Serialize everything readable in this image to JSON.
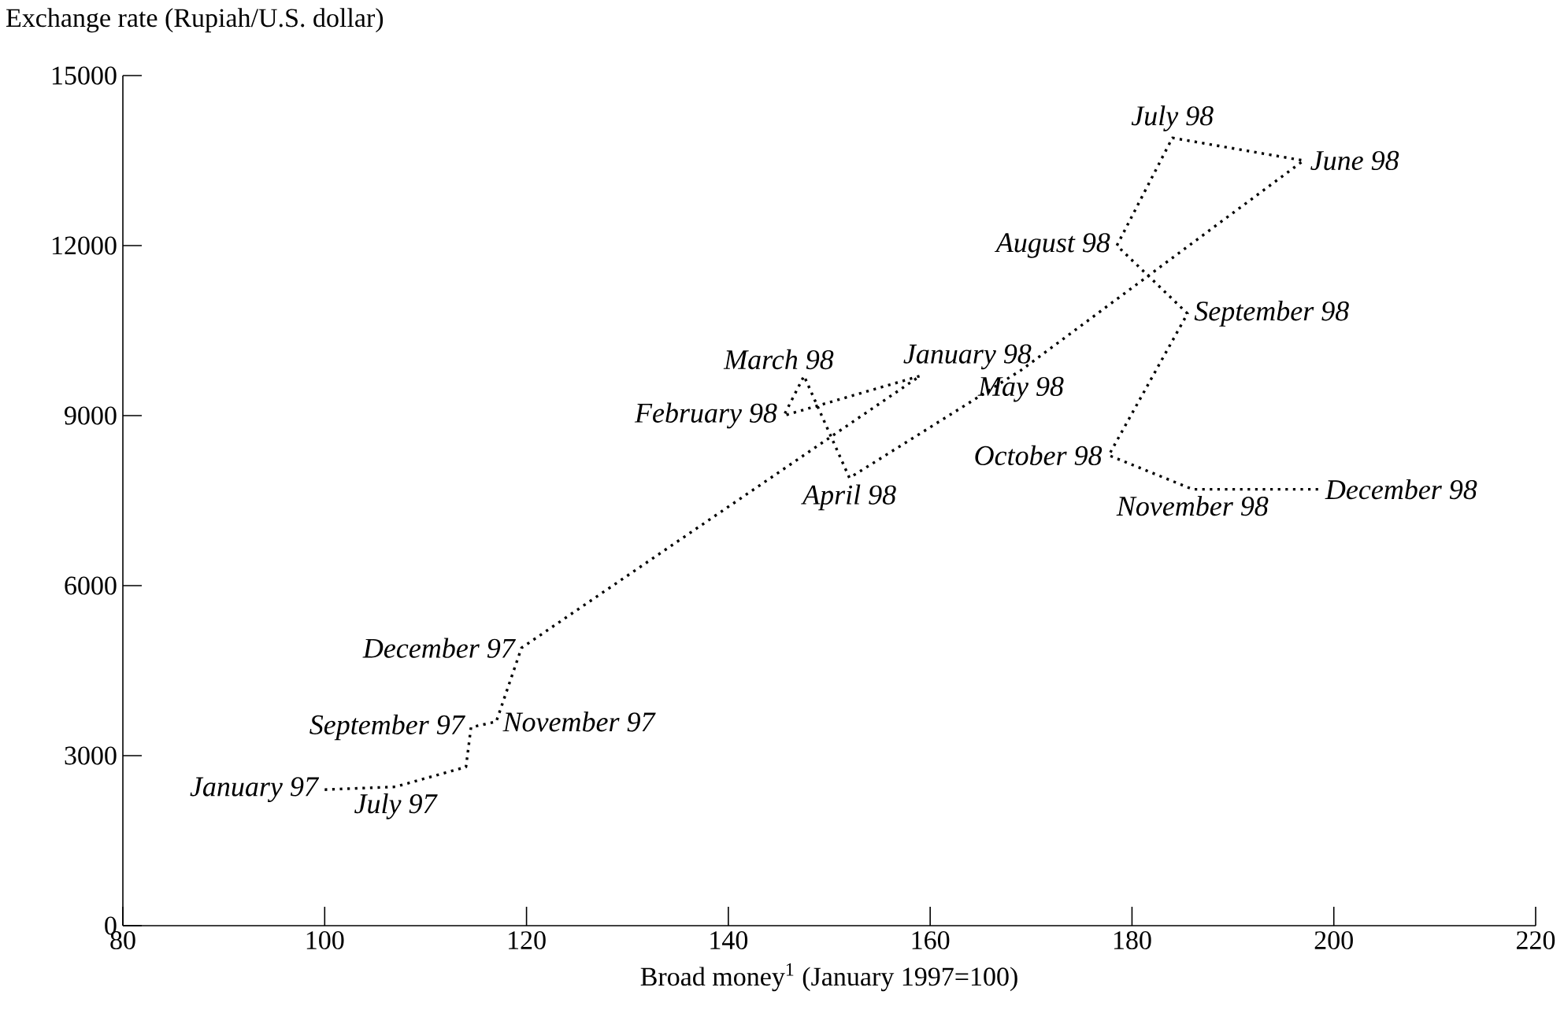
{
  "chart_data": {
    "type": "line",
    "xlabel": "Broad money$^{1}$ (January 1997=100)",
    "ylabel": "Exchange rate (Rupiah/U.S. dollar)",
    "xlim": [
      80,
      220
    ],
    "ylim": [
      0,
      15000
    ],
    "xticks": [
      80,
      100,
      120,
      140,
      160,
      180,
      200,
      220
    ],
    "yticks": [
      0,
      3000,
      6000,
      9000,
      12000,
      15000
    ],
    "x": [
      100,
      107,
      114,
      114.5,
      117,
      119.5,
      159,
      145.5,
      147.5,
      152,
      169,
      197,
      184,
      178.5,
      185.5,
      177.7,
      186,
      198.5
    ],
    "values": [
      2400,
      2450,
      2800,
      3500,
      3600,
      4900,
      9700,
      9000,
      9700,
      7900,
      9800,
      13500,
      13900,
      12000,
      10800,
      8300,
      7700,
      7700
    ],
    "color": "#000000",
    "line_style": "dotted",
    "marker": "none",
    "annotations": [
      {
        "text": "January 97",
        "x": 100,
        "y": 2400
      },
      {
        "text": "July 97",
        "x": 107,
        "y": 2450
      },
      {
        "text": "September 97",
        "x": 114.5,
        "y": 3500
      },
      {
        "text": "November 97",
        "x": 117,
        "y": 3600
      },
      {
        "text": "December 97",
        "x": 119.5,
        "y": 4900
      },
      {
        "text": "January 98",
        "x": 159,
        "y": 9700
      },
      {
        "text": "February 98",
        "x": 145.5,
        "y": 9000
      },
      {
        "text": "March 98",
        "x": 147.5,
        "y": 9700
      },
      {
        "text": "April 98",
        "x": 152,
        "y": 7900
      },
      {
        "text": "May 98",
        "x": 169,
        "y": 9800
      },
      {
        "text": "June 98",
        "x": 197,
        "y": 13500
      },
      {
        "text": "July 98",
        "x": 184,
        "y": 13900
      },
      {
        "text": "August 98",
        "x": 178.5,
        "y": 12000
      },
      {
        "text": "September 98",
        "x": 185.5,
        "y": 10800
      },
      {
        "text": "October 98",
        "x": 177.7,
        "y": 8300
      },
      {
        "text": "November 98",
        "x": 186,
        "y": 7700
      },
      {
        "text": "December 98",
        "x": 198.5,
        "y": 7700
      }
    ]
  }
}
